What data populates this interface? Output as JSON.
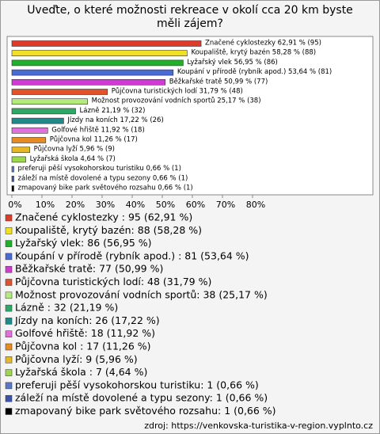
{
  "chart_data": {
    "type": "hbar",
    "title": "Uveďte, o které možnosti rekreace v okolí cca 20 km byste měli zájem?",
    "categories": [
      "Značené cyklostezky",
      "Koupaliště, krytý bazén",
      "Lyžařský vlek",
      "Koupání v přírodě (rybník apod.)",
      "Běžkařské tratě",
      "Půjčovna turistických lodí",
      "Možnost provozování vodních sportů",
      "Lázně",
      "Jízdy na koních",
      "Golfové hřiště",
      "Půjčovna kol",
      "Půjčovna lyží",
      "Lyžařská škola",
      "preferuji pěší vysokohorskou turistiku",
      "záleží na místě dovolené a typu sezony",
      "zmapovaný bike park světového rozsahu"
    ],
    "values": [
      62.91,
      58.28,
      56.95,
      53.64,
      50.99,
      31.79,
      25.17,
      21.19,
      17.22,
      11.92,
      11.26,
      5.96,
      4.64,
      0.66,
      0.66,
      0.66
    ],
    "counts": [
      95,
      88,
      86,
      81,
      77,
      48,
      38,
      32,
      26,
      18,
      17,
      9,
      7,
      1,
      1,
      1
    ],
    "value_labels": [
      "Značené cyklostezky 62,91 % (95)",
      "Koupaliště, krytý bazén 58,28 % (88)",
      "Lyžařský vlek 56,95 % (86)",
      "Koupání v přírodě (rybník apod.) 53,64 % (81)",
      "Běžkařské tratě 50,99 % (77)",
      "Půjčovna turistických lodí 31,79 % (48)",
      "Možnost provozování vodních sportů 25,17 % (38)",
      "Lázně 21,19 % (32)",
      "Jízdy na koních 17,22 % (26)",
      "Golfové hřiště 11,92 % (18)",
      "Půjčovna kol 11,26 % (17)",
      "Půjčovna lyží 5,96 % (9)",
      "Lyžařská škola 4,64 % (7)",
      "preferuji pěší vysokohorskou turistiku 0,66 % (1)",
      "záleží na místě dovolené a typu sezony 0,66 % (1)",
      "zmapovaný bike park světového rozsahu 0,66 % (1)"
    ],
    "legend_labels": [
      "Značené cyklostezky : 95 (62,91 %)",
      "Koupaliště, krytý bazén: 88 (58,28 %)",
      "Lyžařský vlek: 86 (56,95 %)",
      "Koupání v přírodě (rybník apod.) : 81 (53,64 %)",
      "Běžkařské tratě: 77 (50,99 %)",
      "Půjčovna turistických lodí: 48 (31,79 %)",
      "Možnost provozování vodních sportů: 38 (25,17 %)",
      "Lázně : 32 (21,19 %)",
      "Jízdy na koních: 26 (17,22 %)",
      "Golfové hřiště: 18 (11,92 %)",
      "Půjčovna kol : 17 (11,26 %)",
      "Půjčovna lyží: 9 (5,96 %)",
      "Lyžařská škola : 7 (4,64 %)",
      "preferuji pěší vysokohorskou turistiku: 1 (0,66 %)",
      "záleží na místě dovolené a typu sezony: 1 (0,66 %)",
      "zmapovaný bike park světového rozsahu: 1 (0,66 %)"
    ],
    "colors": [
      "#e03a2a",
      "#f2e024",
      "#22b02a",
      "#4a6ad6",
      "#d23ad6",
      "#e2522a",
      "#b4ec7c",
      "#2ea866",
      "#1e8a8a",
      "#e070dc",
      "#e88a24",
      "#e8b824",
      "#9cd84a",
      "#5a78c8",
      "#3e52a8",
      "#000000"
    ],
    "xlim": [
      0,
      120
    ],
    "xticks": [
      {
        "value": 0,
        "label": "0%"
      },
      {
        "value": 10,
        "label": "10%"
      },
      {
        "value": 20,
        "label": "20%"
      },
      {
        "value": 30,
        "label": "30%"
      },
      {
        "value": 40,
        "label": "40%"
      },
      {
        "value": 50,
        "label": "50%"
      },
      {
        "value": 60,
        "label": "60%"
      },
      {
        "value": 70,
        "label": "70%"
      },
      {
        "value": 80,
        "label": "80%"
      }
    ],
    "source": "zdroj: https://venkovska-turistika-v-region.vyplnto.cz"
  }
}
